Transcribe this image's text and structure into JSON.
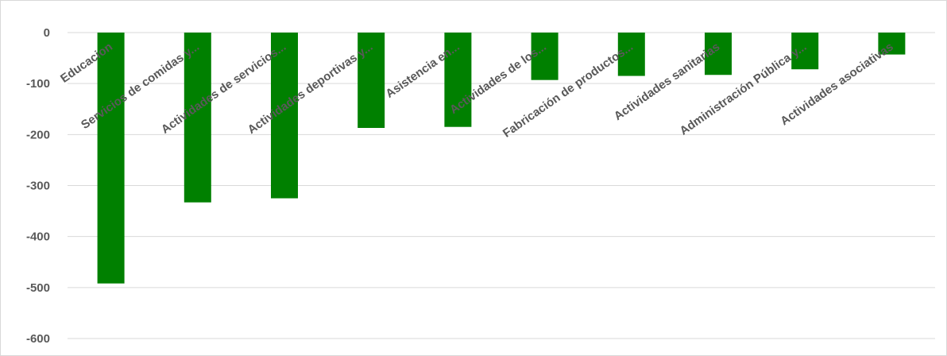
{
  "chart_data": {
    "type": "bar",
    "title": "",
    "xlabel": "",
    "ylabel": "",
    "categories": [
      "Educacion",
      "Servicios de comidas y...",
      "Actividades de servicios...",
      "Actividades deportivas y...",
      "Asistencia en...",
      "Actividades de los...",
      "Fabricación de productos...",
      "Actividades sanitarias",
      "Administración Pública y...",
      "Actividades asociativas"
    ],
    "values": [
      -492,
      -333,
      -325,
      -187,
      -185,
      -93,
      -85,
      -83,
      -72,
      -43
    ],
    "ylim": [
      -600,
      0
    ],
    "yticks": [
      0,
      -100,
      -200,
      -300,
      -400,
      -500,
      -600
    ],
    "grid": true,
    "legend": "none",
    "bar_color": "#008000"
  }
}
